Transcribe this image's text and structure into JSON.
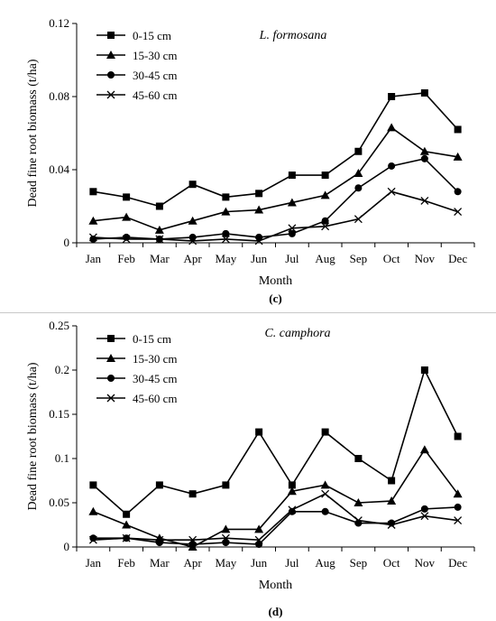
{
  "chart_data": [
    {
      "type": "line",
      "title": "L. formosana",
      "panel_label": "(c)",
      "xlabel": "Month",
      "ylabel": "Dead fine root biomass (t/ha)",
      "categories": [
        "Jan",
        "Feb",
        "Mar",
        "Apr",
        "May",
        "Jun",
        "Jul",
        "Aug",
        "Sep",
        "Oct",
        "Nov",
        "Dec"
      ],
      "ylim": [
        0,
        0.12
      ],
      "yticks": [
        0,
        0.04,
        0.08,
        0.12
      ],
      "ytick_labels": [
        "0",
        "0.04",
        "0.08",
        "0.12"
      ],
      "legend_position": "top-left",
      "grid": false,
      "series": [
        {
          "name": "0-15 cm",
          "marker": "square",
          "values": [
            0.028,
            0.025,
            0.02,
            0.032,
            0.025,
            0.027,
            0.037,
            0.037,
            0.05,
            0.08,
            0.082,
            0.062
          ]
        },
        {
          "name": "15-30 cm",
          "marker": "triangle",
          "values": [
            0.012,
            0.014,
            0.007,
            0.012,
            0.017,
            0.018,
            0.022,
            0.026,
            0.038,
            0.063,
            0.05,
            0.047
          ]
        },
        {
          "name": "30-45 cm",
          "marker": "circle",
          "values": [
            0.002,
            0.003,
            0.002,
            0.003,
            0.005,
            0.003,
            0.005,
            0.012,
            0.03,
            0.042,
            0.046,
            0.028
          ]
        },
        {
          "name": "45-60 cm",
          "marker": "cross",
          "values": [
            0.003,
            0.002,
            0.002,
            0.001,
            0.002,
            0.001,
            0.008,
            0.009,
            0.013,
            0.028,
            0.023,
            0.017
          ]
        }
      ]
    },
    {
      "type": "line",
      "title": "C. camphora",
      "panel_label": "(d)",
      "xlabel": "Month",
      "ylabel": "Dead fine root biomass (t/ha)",
      "categories": [
        "Jan",
        "Feb",
        "Mar",
        "Apr",
        "May",
        "Jun",
        "Jul",
        "Aug",
        "Sep",
        "Oct",
        "Nov",
        "Dec"
      ],
      "ylim": [
        0,
        0.25
      ],
      "yticks": [
        0,
        0.05,
        0.1,
        0.15,
        0.2,
        0.25
      ],
      "ytick_labels": [
        "0",
        "0.05",
        "0.1",
        "0.15",
        "0.2",
        "0.25"
      ],
      "legend_position": "top-left",
      "grid": false,
      "series": [
        {
          "name": "0-15 cm",
          "marker": "square",
          "values": [
            0.07,
            0.037,
            0.07,
            0.06,
            0.07,
            0.13,
            0.07,
            0.13,
            0.1,
            0.075,
            0.2,
            0.125
          ]
        },
        {
          "name": "15-30 cm",
          "marker": "triangle",
          "values": [
            0.04,
            0.025,
            0.01,
            0.0,
            0.02,
            0.02,
            0.063,
            0.07,
            0.05,
            0.052,
            0.11,
            0.06
          ]
        },
        {
          "name": "30-45 cm",
          "marker": "circle",
          "values": [
            0.01,
            0.01,
            0.005,
            0.003,
            0.005,
            0.003,
            0.04,
            0.04,
            0.027,
            0.027,
            0.043,
            0.045
          ]
        },
        {
          "name": "45-60 cm",
          "marker": "cross",
          "values": [
            0.008,
            0.01,
            0.008,
            0.008,
            0.01,
            0.008,
            0.042,
            0.06,
            0.03,
            0.025,
            0.035,
            0.03
          ]
        }
      ]
    }
  ]
}
